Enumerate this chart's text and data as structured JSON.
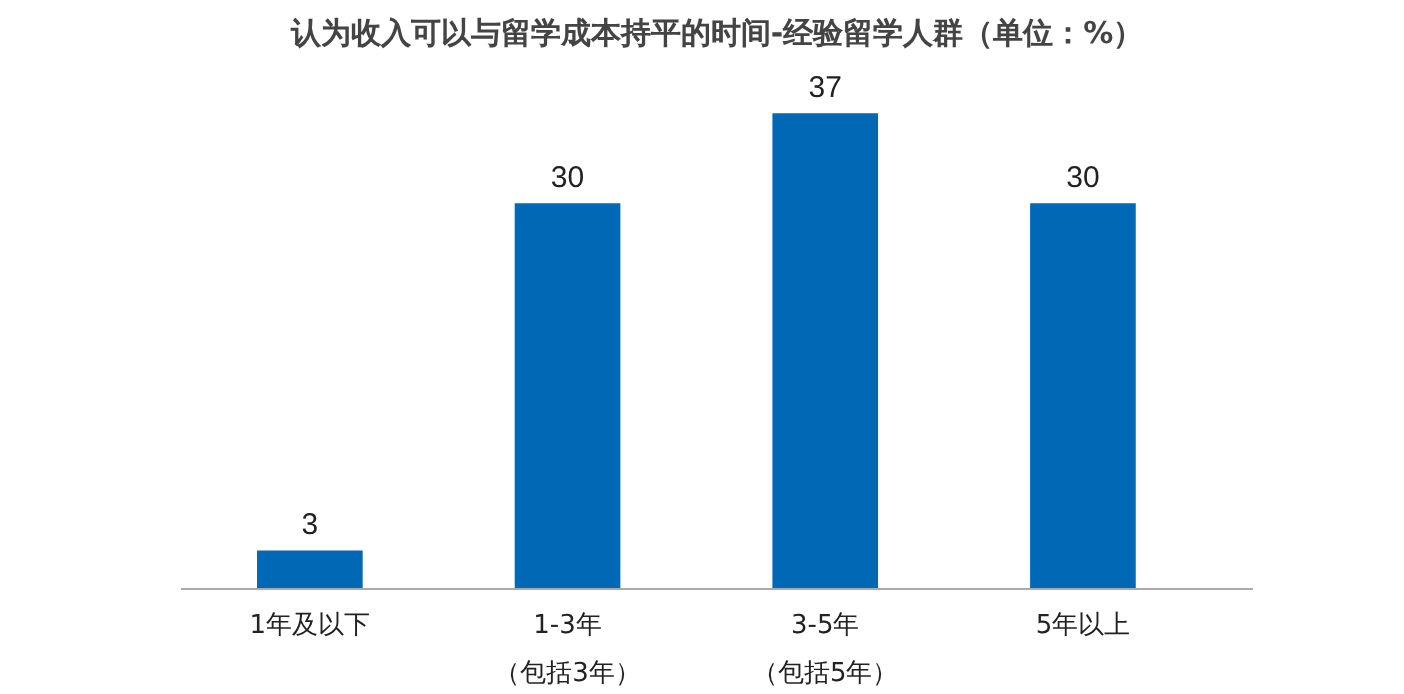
{
  "chart_data": {
    "type": "bar",
    "title": "认为收入可以与留学成本持平的时间-经验留学人群（单位：%）",
    "categories": [
      "1年及以下",
      "1-3年（包括3年）",
      "3-5年（包括5年）",
      "5年以上"
    ],
    "values": [
      3,
      30,
      37,
      30
    ],
    "color": "#0068b5",
    "data_labels": true,
    "tick_labels": "x"
  }
}
